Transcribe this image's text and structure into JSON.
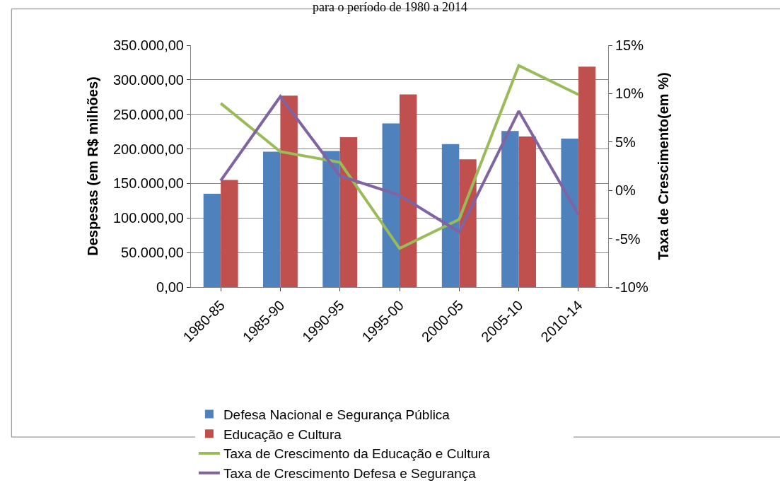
{
  "chart_data": {
    "type": "bar",
    "title": "para o período de 1980 a 2014",
    "ylabel": "Despesas (em R$ milhões)",
    "y2label": "Taxa de Crescimento(em %)",
    "categories": [
      "1980-85",
      "1985-90",
      "1990-95",
      "1995-00",
      "2000-05",
      "2005-10",
      "2010-14"
    ],
    "series": [
      {
        "name": "Defesa Nacional e Segurança Pública",
        "color": "#4f81bd",
        "values": [
          135000,
          196000,
          197000,
          237000,
          207000,
          226000,
          215000
        ]
      },
      {
        "name": "Educação e Cultura",
        "color": "#c0504d",
        "values": [
          155000,
          277000,
          217000,
          279000,
          185000,
          218000,
          319000
        ]
      },
      {
        "name": "Taxa de Crescimento da Educação e Cultura",
        "type": "line",
        "axis": "y2",
        "color": "#9bbb59",
        "values": [
          9.0,
          4.0,
          2.9,
          -6.0,
          -3.0,
          12.9,
          9.9
        ]
      },
      {
        "name": "Taxa de Crescimento Defesa e Segurança",
        "type": "line",
        "axis": "y2",
        "color": "#8064a2",
        "values": [
          1.0,
          9.7,
          1.5,
          -0.5,
          -4.3,
          8.2,
          -2.5
        ]
      }
    ],
    "ylim": [
      0,
      350000
    ],
    "yticks": [
      {
        "value": 0,
        "label": "0,00"
      },
      {
        "value": 50000,
        "label": "50.000,00"
      },
      {
        "value": 100000,
        "label": "100.000,00"
      },
      {
        "value": 150000,
        "label": "150.000,00"
      },
      {
        "value": 200000,
        "label": "200.000,00"
      },
      {
        "value": 250000,
        "label": "250.000,00"
      },
      {
        "value": 300000,
        "label": "300.000,00"
      },
      {
        "value": 350000,
        "label": "350.000,00"
      }
    ],
    "y2lim": [
      -10,
      15
    ],
    "y2ticks": [
      {
        "value": -10,
        "label": "-10%"
      },
      {
        "value": -5,
        "label": "-5%"
      },
      {
        "value": 0,
        "label": "0%"
      },
      {
        "value": 5,
        "label": "5%"
      },
      {
        "value": 10,
        "label": "10%"
      },
      {
        "value": 15,
        "label": "15%"
      }
    ],
    "grid": "y",
    "legend": "bottom",
    "marker": "none",
    "line_style": "solid"
  }
}
